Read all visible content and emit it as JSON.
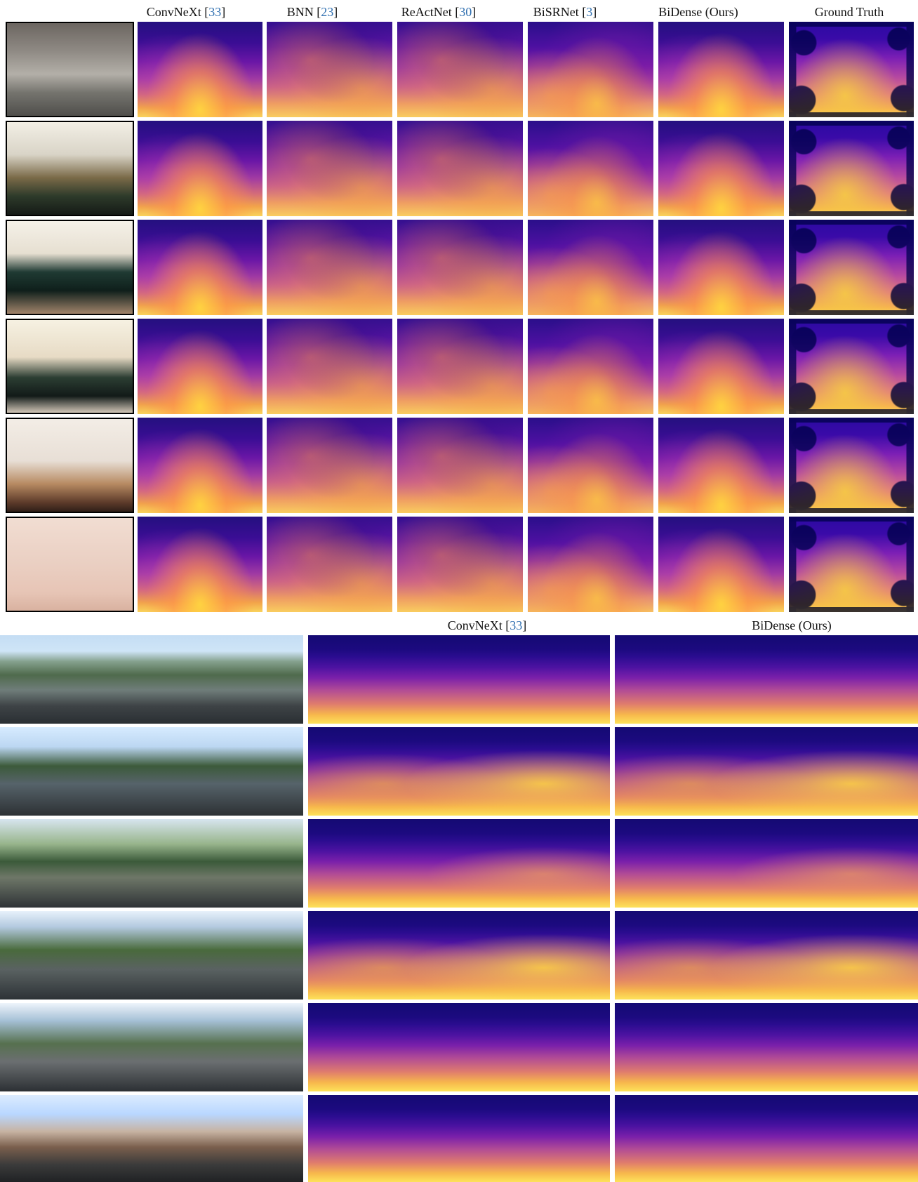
{
  "indoor": {
    "headers": [
      {
        "name": "ConvNeXt",
        "ref": "33"
      },
      {
        "name": "BNN",
        "ref": "23"
      },
      {
        "name": "ReActNet",
        "ref": "30"
      },
      {
        "name": "BiSRNet",
        "ref": "3"
      },
      {
        "name": "BiDense (Ours)",
        "ref": ""
      },
      {
        "name": "Ground Truth",
        "ref": ""
      }
    ]
  },
  "outdoor": {
    "headers": [
      {
        "name": "ConvNeXt",
        "ref": "33"
      },
      {
        "name": "BiDense (Ours)",
        "ref": ""
      }
    ]
  }
}
